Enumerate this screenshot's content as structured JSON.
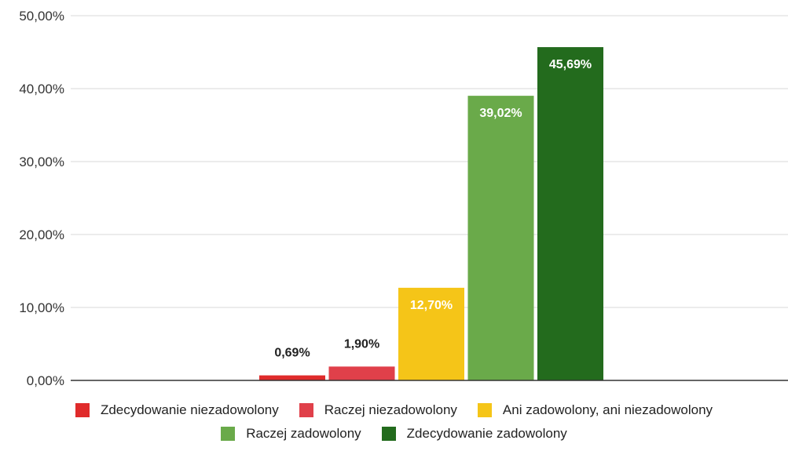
{
  "chart_data": {
    "type": "bar",
    "categories": [
      "Zdecydowanie niezadowolony",
      "Raczej niezadowolony",
      "Ani zadowolony, ani niezadowolony",
      "Raczej zadowolony",
      "Zdecydowanie zadowolony"
    ],
    "values": [
      0.69,
      1.9,
      12.7,
      39.02,
      45.69
    ],
    "data_labels": [
      "0,69%",
      "1,90%",
      "12,70%",
      "39,02%",
      "45,69%"
    ],
    "colors": [
      "#e02b2b",
      "#e0404a",
      "#f5c518",
      "#6aaa4a",
      "#236b1d"
    ],
    "label_colors": [
      "#222222",
      "#222222",
      "#ffffff",
      "#ffffff",
      "#ffffff"
    ],
    "ylim": [
      0,
      50
    ],
    "yticks": [
      0,
      10,
      20,
      30,
      40,
      50
    ],
    "ytick_labels": [
      "0,00%",
      "10,00%",
      "20,00%",
      "30,00%",
      "40,00%",
      "50,00%"
    ],
    "title": "",
    "xlabel": "",
    "ylabel": "",
    "grid": true,
    "legend_position": "bottom"
  }
}
